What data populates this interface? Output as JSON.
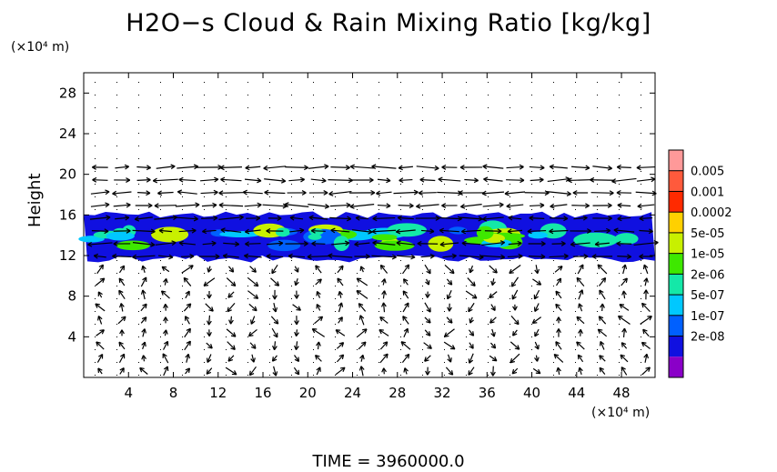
{
  "title": "H2O−s Cloud & Rain Mixing Ratio [kg/kg]",
  "y_unit": "(×10⁴ m)",
  "x_unit": "(×10⁴ m)",
  "time_label": "TIME  =  3960000.0",
  "chart_data": {
    "type": "heatmap",
    "title": "H2O−s Cloud & Rain Mixing Ratio [kg/kg]",
    "ylabel": "Height",
    "xlabel": "",
    "x_unit": "(×10⁴ m)",
    "y_unit": "(×10⁴ m)",
    "xlim": [
      0,
      51
    ],
    "ylim": [
      0,
      30
    ],
    "x_ticks": [
      4,
      8,
      12,
      16,
      20,
      24,
      28,
      32,
      36,
      40,
      44,
      48
    ],
    "y_ticks": [
      4,
      8,
      12,
      16,
      20,
      24,
      28
    ],
    "colorbar": {
      "labels": [
        "0.005",
        "0.001",
        "0.0002",
        "5e-05",
        "1e-05",
        "2e-06",
        "5e-07",
        "1e-07",
        "2e-08"
      ],
      "colors": [
        "#ff9999",
        "#ff5a3c",
        "#ff2a00",
        "#ffd000",
        "#c8f000",
        "#3ee800",
        "#14e8a8",
        "#00c8ff",
        "#0060ff",
        "#1010e0",
        "#8a00c8"
      ]
    },
    "cloud_layer": {
      "y_bottom": 11.5,
      "y_top": 16.2,
      "x_start": 0,
      "x_end": 51
    },
    "wind_field": "vector arrows",
    "time": 3960000.0
  }
}
